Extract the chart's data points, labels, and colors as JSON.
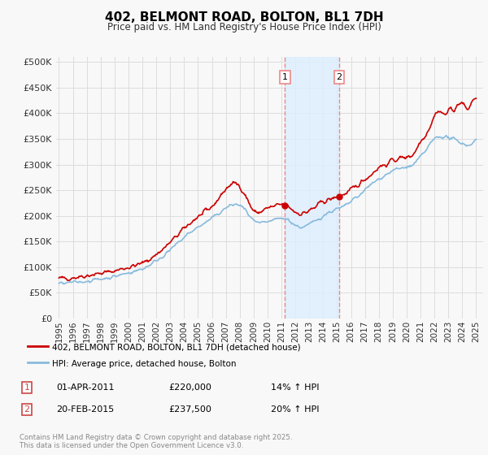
{
  "title": "402, BELMONT ROAD, BOLTON, BL1 7DH",
  "subtitle": "Price paid vs. HM Land Registry's House Price Index (HPI)",
  "ylabel_ticks": [
    "£0",
    "£50K",
    "£100K",
    "£150K",
    "£200K",
    "£250K",
    "£300K",
    "£350K",
    "£400K",
    "£450K",
    "£500K"
  ],
  "ytick_values": [
    0,
    50000,
    100000,
    150000,
    200000,
    250000,
    300000,
    350000,
    400000,
    450000,
    500000
  ],
  "ylim": [
    0,
    510000
  ],
  "xlim_start": 1994.8,
  "xlim_end": 2025.5,
  "background_color": "#f8f8f8",
  "plot_bg_color": "#f8f8f8",
  "grid_color": "#dddddd",
  "red_line_color": "#cc0000",
  "blue_line_color": "#88bbdd",
  "vline1_x": 2011.25,
  "vline2_x": 2015.15,
  "vline_color": "#ee8888",
  "vspan_color": "#ddeeff",
  "sale1_date": "01-APR-2011",
  "sale1_price": "£220,000",
  "sale1_hpi": "14% ↑ HPI",
  "sale2_date": "20-FEB-2015",
  "sale2_price": "£237,500",
  "sale2_hpi": "20% ↑ HPI",
  "legend1": "402, BELMONT ROAD, BOLTON, BL1 7DH (detached house)",
  "legend2": "HPI: Average price, detached house, Bolton",
  "footer": "Contains HM Land Registry data © Crown copyright and database right 2025.\nThis data is licensed under the Open Government Licence v3.0.",
  "red_dot1_x": 2011.25,
  "red_dot1_y": 220000,
  "red_dot2_x": 2015.15,
  "red_dot2_y": 237500
}
